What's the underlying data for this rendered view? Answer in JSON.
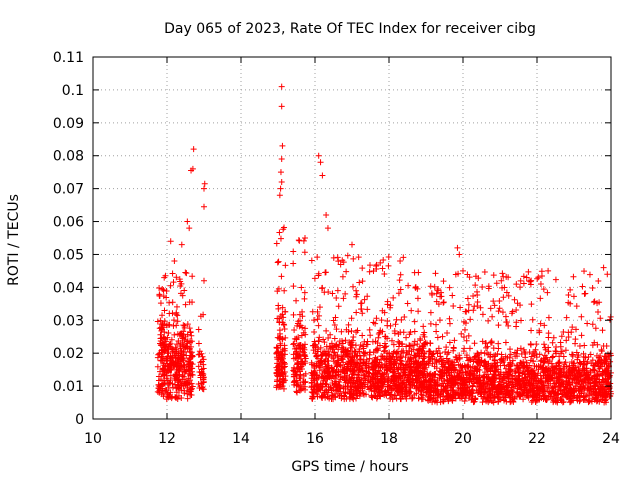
{
  "chart_data": {
    "type": "scatter",
    "title": "Day 065 of 2023, Rate Of TEC Index for receiver cibg",
    "xlabel": "GPS time / hours",
    "ylabel": "ROTI / TECUs",
    "xlim": [
      10,
      24
    ],
    "ylim": [
      0,
      0.11
    ],
    "x_ticks": [
      "10",
      "12",
      "14",
      "16",
      "18",
      "20",
      "22",
      "24"
    ],
    "y_ticks": [
      "0",
      "0.01",
      "0.02",
      "0.03",
      "0.04",
      "0.05",
      "0.06",
      "0.07",
      "0.08",
      "0.09",
      "0.1",
      "0.11"
    ],
    "grid": true,
    "marker": "+",
    "color": "#ff0000",
    "series": [
      {
        "name": "ROTI",
        "clusters": [
          {
            "x_range": [
              11.75,
              12.7
            ],
            "y_min": 0.006,
            "y_max": 0.045,
            "y_mean": 0.022,
            "count": 420
          },
          {
            "x_range": [
              12.85,
              13.0
            ],
            "y_min": 0.008,
            "y_max": 0.034,
            "y_mean": 0.018,
            "count": 40
          },
          {
            "x_range": [
              14.95,
              15.2
            ],
            "y_min": 0.009,
            "y_max": 0.06,
            "y_mean": 0.024,
            "count": 130
          },
          {
            "x_range": [
              15.4,
              15.75
            ],
            "y_min": 0.008,
            "y_max": 0.055,
            "y_mean": 0.024,
            "count": 130
          },
          {
            "x_range": [
              15.9,
              19.0
            ],
            "y_min": 0.006,
            "y_max": 0.05,
            "y_mean": 0.019,
            "count": 1200
          },
          {
            "x_range": [
              19.0,
              24.0
            ],
            "y_min": 0.005,
            "y_max": 0.045,
            "y_mean": 0.016,
            "count": 1800
          }
        ],
        "outliers": [
          {
            "x": 12.55,
            "y": 0.06
          },
          {
            "x": 12.6,
            "y": 0.058
          },
          {
            "x": 12.65,
            "y": 0.0755
          },
          {
            "x": 12.7,
            "y": 0.076
          },
          {
            "x": 12.72,
            "y": 0.082
          },
          {
            "x": 12.4,
            "y": 0.053
          },
          {
            "x": 12.2,
            "y": 0.048
          },
          {
            "x": 12.1,
            "y": 0.054
          },
          {
            "x": 13.0,
            "y": 0.0645
          },
          {
            "x": 13.0,
            "y": 0.07
          },
          {
            "x": 13.02,
            "y": 0.0715
          },
          {
            "x": 13.0,
            "y": 0.042
          },
          {
            "x": 15.1,
            "y": 0.101
          },
          {
            "x": 15.1,
            "y": 0.095
          },
          {
            "x": 15.12,
            "y": 0.083
          },
          {
            "x": 15.1,
            "y": 0.079
          },
          {
            "x": 15.08,
            "y": 0.075
          },
          {
            "x": 15.1,
            "y": 0.072
          },
          {
            "x": 15.07,
            "y": 0.07
          },
          {
            "x": 15.05,
            "y": 0.068
          },
          {
            "x": 16.1,
            "y": 0.08
          },
          {
            "x": 16.15,
            "y": 0.078
          },
          {
            "x": 16.2,
            "y": 0.074
          },
          {
            "x": 16.3,
            "y": 0.062
          },
          {
            "x": 16.35,
            "y": 0.058
          },
          {
            "x": 17.0,
            "y": 0.053
          },
          {
            "x": 18.3,
            "y": 0.048
          },
          {
            "x": 19.85,
            "y": 0.052
          },
          {
            "x": 19.9,
            "y": 0.05
          },
          {
            "x": 20.0,
            "y": 0.045
          },
          {
            "x": 22.3,
            "y": 0.045
          },
          {
            "x": 23.8,
            "y": 0.046
          },
          {
            "x": 23.9,
            "y": 0.044
          }
        ]
      }
    ]
  }
}
